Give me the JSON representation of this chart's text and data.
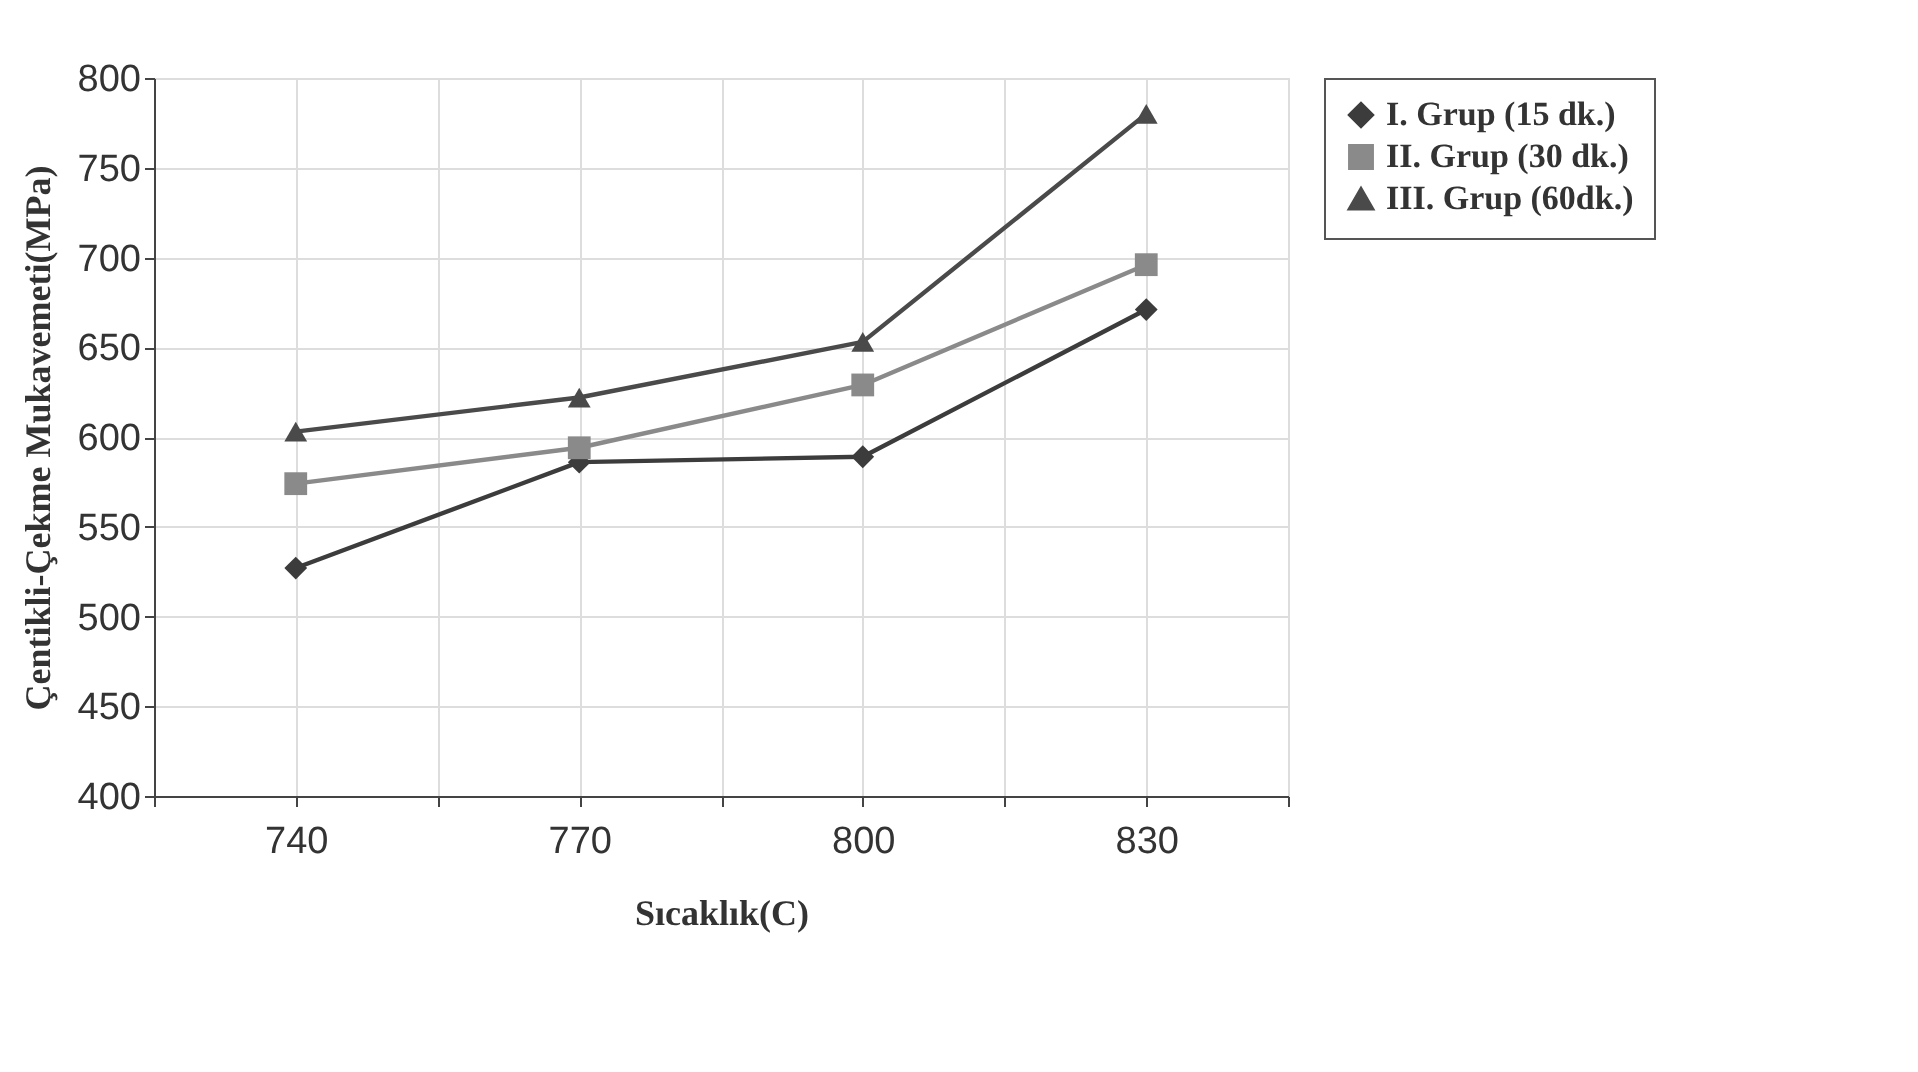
{
  "chart_data": {
    "type": "line",
    "xlabel": "Sıcaklık(C)",
    "ylabel": "Çentikli-Çekme Mukavemeti(MPa)",
    "x": [
      740,
      770,
      800,
      830
    ],
    "xlim": [
      725,
      845
    ],
    "xticks": [
      {
        "value": 725,
        "label": null
      },
      740,
      {
        "value": 755,
        "label": null
      },
      770,
      {
        "value": 785,
        "label": null
      },
      800,
      {
        "value": 815,
        "label": null
      },
      830,
      {
        "value": 845,
        "label": null
      }
    ],
    "ylim": [
      400,
      800
    ],
    "yticks": [
      400,
      450,
      500,
      550,
      600,
      650,
      700,
      750,
      800
    ],
    "grid": true,
    "legend": "right",
    "series": [
      {
        "name": "I. Grup (15 dk.)",
        "color": "#3c3c3c",
        "marker": "diamond",
        "values": [
          527,
          586,
          589,
          671
        ]
      },
      {
        "name": "II. Grup (30 dk.)",
        "color": "#8a8a8a",
        "marker": "square",
        "values": [
          574,
          594,
          629,
          696
        ]
      },
      {
        "name": "III. Grup (60dk.)",
        "color": "#4a4a4a",
        "marker": "triangle",
        "values": [
          603,
          622,
          653,
          780
        ]
      }
    ]
  }
}
